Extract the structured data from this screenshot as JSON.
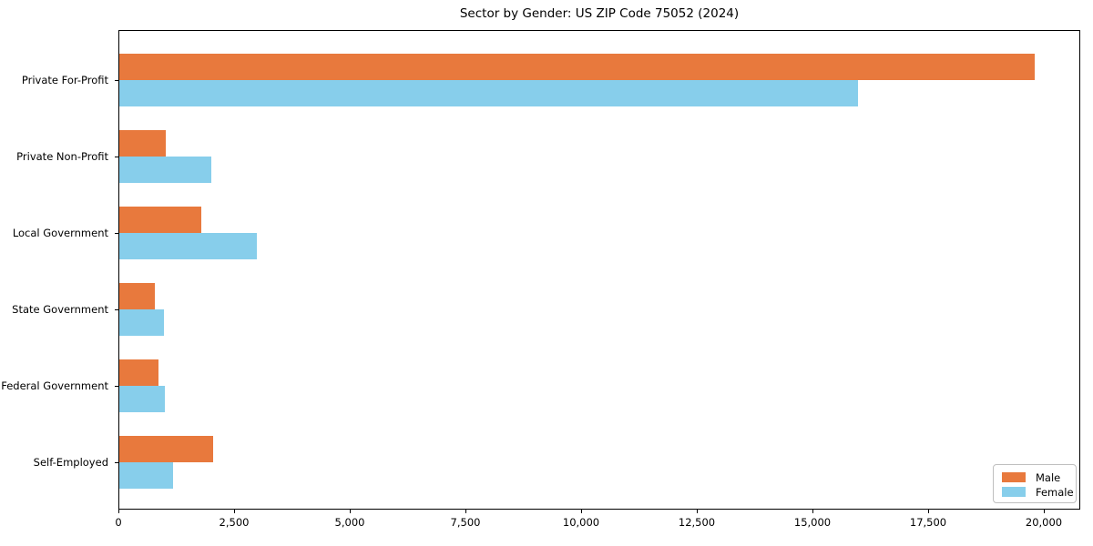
{
  "page": {
    "title": "Sector by Gender: US ZIP Code 75052 (2024)"
  },
  "chart_data": {
    "type": "bar",
    "orientation": "horizontal",
    "title": "Sector by Gender: US ZIP Code 75052 (2024)",
    "categories": [
      "Private For-Profit",
      "Private Non-Profit",
      "Local Government",
      "State Government",
      "Federal Government",
      "Self-Employed"
    ],
    "series": [
      {
        "name": "Male",
        "color": "#e8793d",
        "values": [
          19780,
          1000,
          1770,
          770,
          850,
          2030
        ]
      },
      {
        "name": "Female",
        "color": "#87ceeb",
        "values": [
          15950,
          1990,
          2970,
          970,
          990,
          1160
        ]
      }
    ],
    "xlabel": "",
    "ylabel": "",
    "xlim": [
      0,
      20780
    ],
    "xticks": [
      0,
      2500,
      5000,
      7500,
      10000,
      12500,
      15000,
      17500,
      20000
    ],
    "xtick_labels": [
      "0",
      "2,500",
      "5,000",
      "7,500",
      "10,000",
      "12,500",
      "15,000",
      "17,500",
      "20,000"
    ],
    "grid": false,
    "legend": {
      "position": "lower right",
      "entries": [
        {
          "label": "Male",
          "color": "#e8793d"
        },
        {
          "label": "Female",
          "color": "#87ceeb"
        }
      ]
    }
  }
}
